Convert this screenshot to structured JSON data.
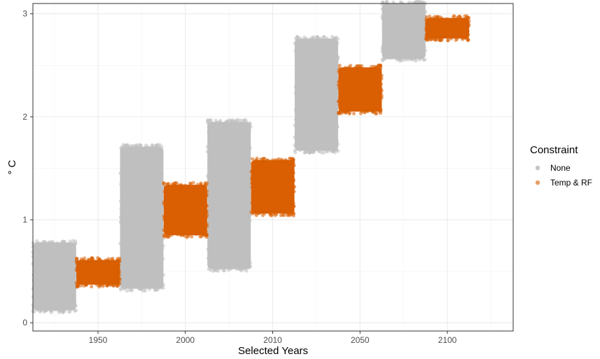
{
  "chart_data": {
    "type": "scatter",
    "subtype": "jittered strip plot (dodged by group)",
    "xlabel": "Selected Years",
    "ylabel": "° C",
    "x_categories": [
      "1950",
      "2000",
      "2010",
      "2050",
      "2100"
    ],
    "ylim": [
      -0.08,
      3.1
    ],
    "yticks": [
      0,
      1,
      2,
      3
    ],
    "grid": true,
    "legend": {
      "title": "Constraint",
      "position": "right"
    },
    "series": [
      {
        "name": "None",
        "color": "#bfbfbf",
        "ranges": [
          {
            "category": "1950",
            "min": 0.1,
            "max": 0.8
          },
          {
            "category": "2000",
            "min": 0.31,
            "max": 1.73
          },
          {
            "category": "2010",
            "min": 0.5,
            "max": 1.97
          },
          {
            "category": "2050",
            "min": 1.65,
            "max": 2.78
          },
          {
            "category": "2100",
            "min": 2.54,
            "max": 3.12
          }
        ]
      },
      {
        "name": "Temp & RF",
        "color": "#d95f02",
        "ranges": [
          {
            "category": "1950",
            "min": 0.35,
            "max": 0.63
          },
          {
            "category": "2000",
            "min": 0.83,
            "max": 1.36
          },
          {
            "category": "2010",
            "min": 1.04,
            "max": 1.6
          },
          {
            "category": "2050",
            "min": 2.03,
            "max": 2.5
          },
          {
            "category": "2100",
            "min": 2.74,
            "max": 2.98
          }
        ]
      }
    ]
  }
}
